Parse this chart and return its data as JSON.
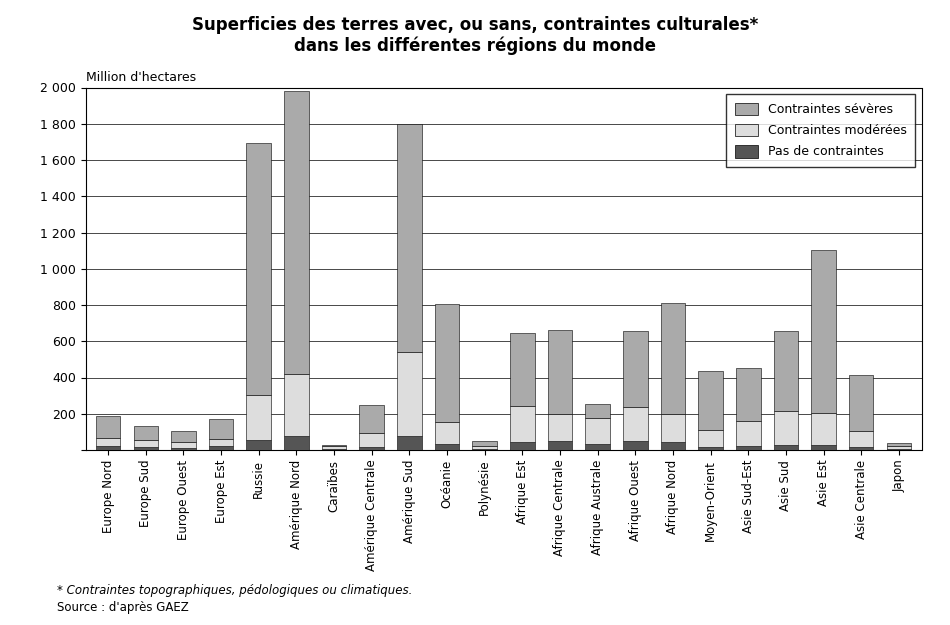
{
  "title_line1": "Superficies des terres avec, ou sans, contraintes culturales*",
  "title_line2": "dans les différentes régions du monde",
  "ylabel": "Million d'hectares",
  "footnote1": "* Contraintes topographiques, pédologiques ou climatiques.",
  "footnote2": "Source : d'après GAEZ",
  "categories": [
    "Europe Nord",
    "Europe Sud",
    "Europe Ouest",
    "Europe Est",
    "Russie",
    "Amérique Nord",
    "Caraïbes",
    "Amérique Centrale",
    "Amérique Sud",
    "Océanie",
    "Polynésie",
    "Afrique Est",
    "Afrique Centrale",
    "Afrique Australe",
    "Afrique Ouest",
    "Afrique Nord",
    "Moyen-Orient",
    "Asie Sud-Est",
    "Asie Sud",
    "Asie Est",
    "Asie Centrale",
    "Japon"
  ],
  "severes": [
    120,
    80,
    65,
    110,
    1390,
    1560,
    10,
    155,
    1260,
    650,
    30,
    400,
    460,
    80,
    420,
    610,
    330,
    290,
    440,
    900,
    310,
    15
  ],
  "moderees": [
    45,
    40,
    30,
    40,
    250,
    340,
    15,
    75,
    460,
    120,
    15,
    200,
    150,
    140,
    185,
    155,
    90,
    140,
    185,
    175,
    85,
    15
  ],
  "pas_contraintes": [
    20,
    15,
    12,
    20,
    55,
    80,
    5,
    18,
    80,
    35,
    5,
    45,
    50,
    35,
    50,
    45,
    18,
    22,
    30,
    30,
    18,
    8
  ],
  "color_severes": "#aaaaaa",
  "color_moderees": "#dddddd",
  "color_pas": "#555555",
  "ylim": [
    0,
    2000
  ],
  "yticks": [
    0,
    200,
    400,
    600,
    800,
    1000,
    1200,
    1400,
    1600,
    1800,
    2000
  ],
  "ytick_labels": [
    "",
    "200",
    "400",
    "600",
    "800",
    "1 000",
    "1 200",
    "1 400",
    "1 600",
    "1 800",
    "2 000"
  ],
  "legend_labels": [
    "Contraintes sévères",
    "Contraintes modérées",
    "Pas de contraintes"
  ],
  "background_color": "#ffffff",
  "title_fontsize": 12,
  "label_fontsize": 8.5,
  "tick_fontsize": 9
}
